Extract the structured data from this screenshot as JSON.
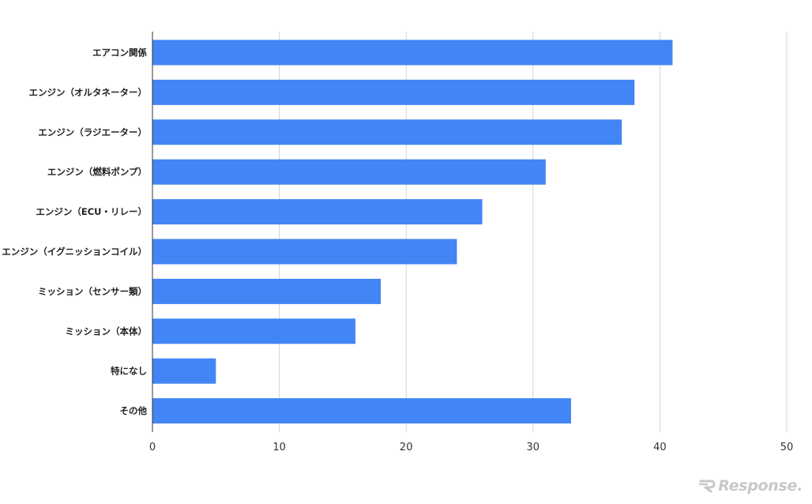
{
  "chart_data": {
    "type": "bar",
    "orientation": "horizontal",
    "categories": [
      "エアコン関係",
      "エンジン（オルタネーター）",
      "エンジン（ラジエーター）",
      "エンジン（燃料ポンプ）",
      "エンジン（ECU・リレー）",
      "エンジン（イグニッションコイル）",
      "ミッション（センサー類）",
      "ミッション（本体）",
      "特になし",
      "その他"
    ],
    "values": [
      41,
      38,
      37,
      31,
      26,
      24,
      18,
      16,
      5,
      33
    ],
    "xlim": [
      0,
      50
    ],
    "xticks": [
      0,
      10,
      20,
      30,
      40,
      50
    ],
    "grid": true,
    "bar_color": "#4285f4",
    "title": "",
    "xlabel": "",
    "ylabel": ""
  },
  "watermark": {
    "text": "Response."
  }
}
